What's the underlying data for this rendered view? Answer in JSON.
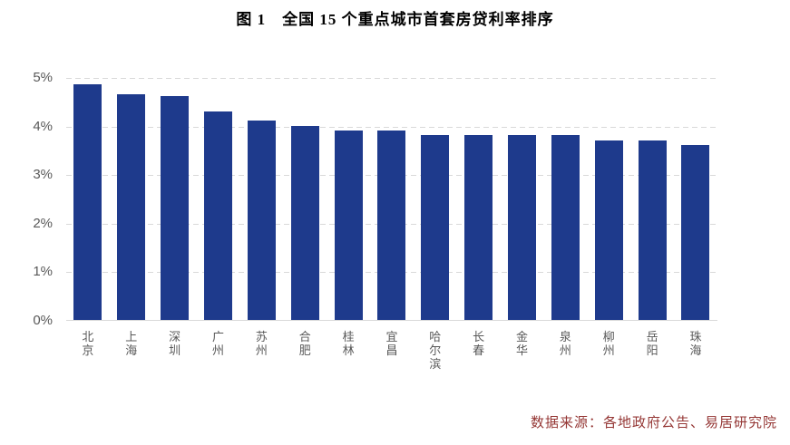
{
  "chart_data": {
    "type": "bar",
    "title": "图 1　全国 15 个重点城市首套房贷利率排序",
    "categories": [
      "北京",
      "上海",
      "深圳",
      "广州",
      "苏州",
      "合肥",
      "桂林",
      "宜昌",
      "哈尔滨",
      "长春",
      "金华",
      "泉州",
      "柳州",
      "岳阳",
      "珠海"
    ],
    "values": [
      4.85,
      4.65,
      4.6,
      4.3,
      4.1,
      4.0,
      3.9,
      3.9,
      3.8,
      3.8,
      3.8,
      3.8,
      3.7,
      3.7,
      3.6
    ],
    "unit": "%",
    "xlabel": "",
    "ylabel": "",
    "ylim": [
      0,
      5
    ],
    "ytick_step": 1,
    "yticks": [
      "0%",
      "1%",
      "2%",
      "3%",
      "4%",
      "5%"
    ],
    "grid": "horizontal-dashed",
    "legend": "none",
    "source_note": "数据来源：各地政府公告、易居研究院"
  },
  "colors": {
    "bar": "#1E3A8C",
    "gridline": "#D9D9D9",
    "axis_line": "#D9D9D9",
    "tick_text": "#595959",
    "category_text": "#595959",
    "title_text": "#000000",
    "source_text": "#953735"
  }
}
